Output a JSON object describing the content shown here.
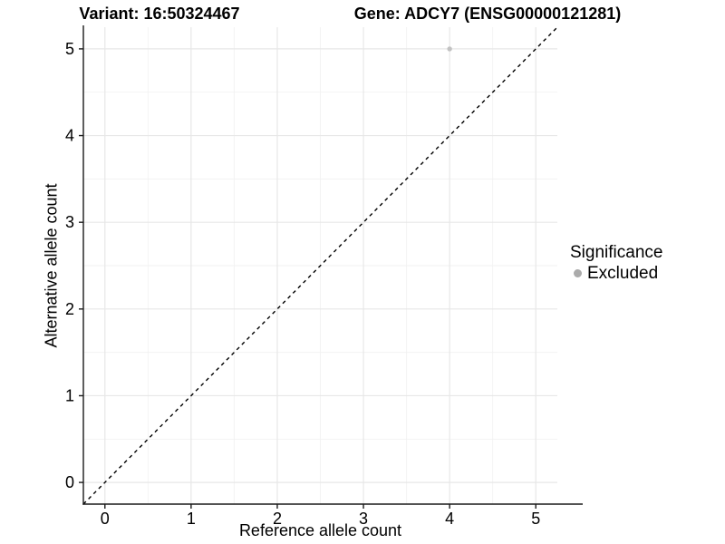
{
  "titles": {
    "variant": "Variant: 16:50324467",
    "gene": "Gene: ADCY7 (ENSG00000121281)"
  },
  "chart_data": {
    "type": "scatter",
    "title": "Variant: 16:50324467 / Gene: ADCY7 (ENSG00000121281)",
    "xlabel": "Reference allele count",
    "ylabel": "Alternative allele count",
    "xlim": [
      -0.25,
      5.25
    ],
    "ylim": [
      -0.25,
      5.25
    ],
    "x_ticks": [
      0,
      1,
      2,
      3,
      4,
      5
    ],
    "y_ticks": [
      0,
      1,
      2,
      3,
      4,
      5
    ],
    "x_minor": [
      0.5,
      1.5,
      2.5,
      3.5,
      4.5
    ],
    "y_minor": [
      0.5,
      1.5,
      2.5,
      3.5,
      4.5
    ],
    "grid": true,
    "points": [
      {
        "x": 4,
        "y": 5,
        "series": "Excluded"
      }
    ],
    "identity_line": {
      "slope": 1,
      "intercept": 0,
      "linetype": "dashed"
    },
    "legend": {
      "title": "Significance",
      "position": "right",
      "entries": [
        {
          "label": "Excluded",
          "color": "#ababab"
        }
      ]
    },
    "colors": {
      "point": "#c2c2c2",
      "grid_major": "#e7e7e7",
      "grid_minor": "#f2f2f2",
      "axis": "#1a1a1a",
      "identity_line": "#000000",
      "background": "#ffffff"
    }
  }
}
